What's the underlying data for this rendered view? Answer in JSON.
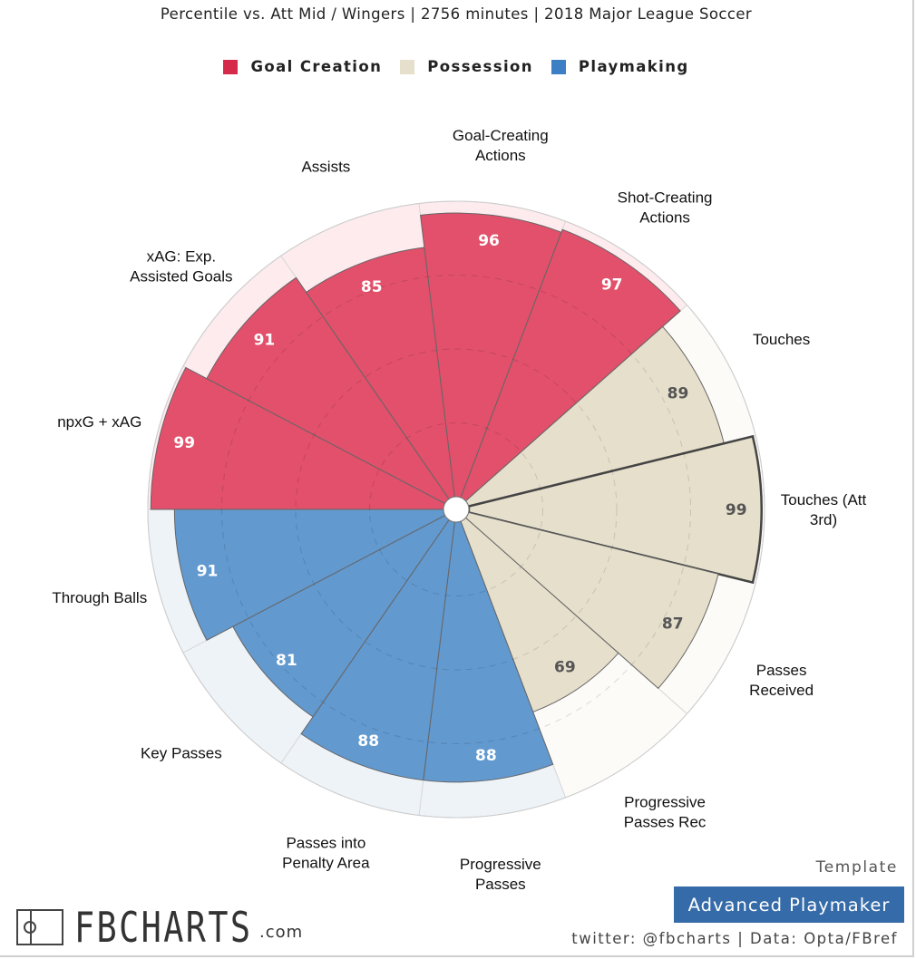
{
  "subtitle": "Percentile vs. Att Mid / Wingers | 2756 minutes | 2018 Major League Soccer",
  "legend": [
    {
      "name": "Goal Creation",
      "color": "#d62a4a"
    },
    {
      "name": "Possession",
      "color": "#e6dfcc"
    },
    {
      "name": "Playmaking",
      "color": "#3d7fc5"
    }
  ],
  "chart_data": {
    "type": "polar-bar",
    "range": [
      0,
      100
    ],
    "start_category": "npxG + xAG",
    "direction": "clockwise",
    "categories": [
      {
        "name": "npxG + xAG",
        "value": 99,
        "group": "Goal Creation",
        "label_lines": [
          "npxG + xAG"
        ]
      },
      {
        "name": "xAG: Exp. Assisted Goals",
        "value": 91,
        "group": "Goal Creation",
        "label_lines": [
          "xAG: Exp.",
          "Assisted Goals"
        ]
      },
      {
        "name": "Assists",
        "value": 85,
        "group": "Goal Creation",
        "label_lines": [
          "Assists"
        ]
      },
      {
        "name": "Goal-Creating Actions",
        "value": 96,
        "group": "Goal Creation",
        "label_lines": [
          "Goal-Creating",
          "Actions"
        ]
      },
      {
        "name": "Shot-Creating Actions",
        "value": 97,
        "group": "Goal Creation",
        "label_lines": [
          "Shot-Creating",
          "Actions"
        ]
      },
      {
        "name": "Touches",
        "value": 89,
        "group": "Possession",
        "label_lines": [
          "Touches"
        ]
      },
      {
        "name": "Touches (Att 3rd)",
        "value": 99,
        "group": "Possession",
        "label_lines": [
          "Touches (Att",
          "3rd)"
        ],
        "highlight": true
      },
      {
        "name": "Passes Received",
        "value": 87,
        "group": "Possession",
        "label_lines": [
          "Passes",
          "Received"
        ]
      },
      {
        "name": "Progressive Passes Rec",
        "value": 69,
        "group": "Possession",
        "label_lines": [
          "Progressive",
          "Passes Rec"
        ]
      },
      {
        "name": "Progressive Passes",
        "value": 88,
        "group": "Playmaking",
        "label_lines": [
          "Progressive",
          "Passes"
        ]
      },
      {
        "name": "Passes into Penalty Area",
        "value": 88,
        "group": "Playmaking",
        "label_lines": [
          "Passes into",
          "Penalty Area"
        ]
      },
      {
        "name": "Key Passes",
        "value": 81,
        "group": "Playmaking",
        "label_lines": [
          "Key Passes"
        ]
      },
      {
        "name": "Through Balls",
        "value": 91,
        "group": "Playmaking",
        "label_lines": [
          "Through Balls"
        ]
      }
    ],
    "colors": {
      "Goal Creation": {
        "fill": "#e2506b",
        "bg": "#fdebee",
        "text": "#ffffff"
      },
      "Possession": {
        "fill": "#e6dfcc",
        "bg": "#fcfbf8",
        "text": "#555555"
      },
      "Playmaking": {
        "fill": "#6299cf",
        "bg": "#eef3f8",
        "text": "#ffffff"
      }
    }
  },
  "brand": {
    "logo_text": "FBCHARTS",
    "logo_suffix": ".com"
  },
  "template": {
    "label": "Template",
    "name": "Advanced Playmaker"
  },
  "credits": "twitter: @fbcharts | Data: Opta/FBref"
}
